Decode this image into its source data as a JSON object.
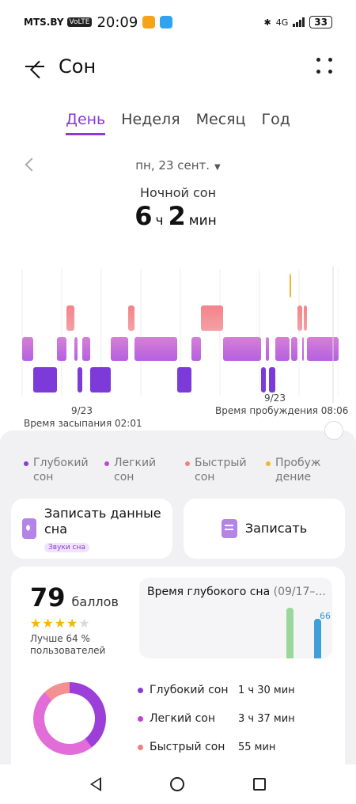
{
  "status": {
    "carrier": "MTS.BY",
    "volte": "VoLTE",
    "time": "20:09",
    "net": "4G",
    "battery": "33"
  },
  "header": {
    "title": "Сон"
  },
  "tabs": [
    {
      "label": "День",
      "active": true
    },
    {
      "label": "Неделя",
      "active": false
    },
    {
      "label": "Месяц",
      "active": false
    },
    {
      "label": "Год",
      "active": false
    }
  ],
  "date": {
    "label": "пн, 23 сент.",
    "caret": "▼"
  },
  "summary": {
    "label": "Ночной сон",
    "hours": "6",
    "hours_unit": "ч",
    "minutes": "2",
    "minutes_unit": "мин"
  },
  "chart_data": {
    "type": "hypnogram",
    "stages": [
      "Быстрый сон",
      "Легкий сон",
      "Глубокий сон"
    ],
    "colors": {
      "rem": "#f28a8a",
      "light": "#c46de0",
      "deep": "#7c3ad8",
      "awake": "#f2b72b"
    },
    "segments": [
      {
        "stage": "light",
        "start": 0,
        "end": 14
      },
      {
        "stage": "deep",
        "start": 14,
        "end": 44
      },
      {
        "stage": "light",
        "start": 44,
        "end": 56
      },
      {
        "stage": "rem",
        "start": 56,
        "end": 66
      },
      {
        "stage": "light",
        "start": 66,
        "end": 70
      },
      {
        "stage": "deep",
        "start": 70,
        "end": 76
      },
      {
        "stage": "light",
        "start": 76,
        "end": 86
      },
      {
        "stage": "deep",
        "start": 86,
        "end": 112
      },
      {
        "stage": "light",
        "start": 112,
        "end": 134
      },
      {
        "stage": "rem",
        "start": 134,
        "end": 142
      },
      {
        "stage": "light",
        "start": 142,
        "end": 196
      },
      {
        "stage": "deep",
        "start": 196,
        "end": 214
      },
      {
        "stage": "light",
        "start": 214,
        "end": 226
      },
      {
        "stage": "rem",
        "start": 226,
        "end": 254
      },
      {
        "stage": "light",
        "start": 254,
        "end": 302
      },
      {
        "stage": "deep",
        "start": 302,
        "end": 308
      },
      {
        "stage": "light",
        "start": 308,
        "end": 312
      },
      {
        "stage": "deep",
        "start": 312,
        "end": 320
      },
      {
        "stage": "light",
        "start": 320,
        "end": 338
      },
      {
        "stage": "awake",
        "start": 338,
        "end": 340
      },
      {
        "stage": "light",
        "start": 340,
        "end": 348
      },
      {
        "stage": "rem",
        "start": 348,
        "end": 354
      },
      {
        "stage": "light",
        "start": 354,
        "end": 356
      },
      {
        "stage": "rem",
        "start": 356,
        "end": 360
      },
      {
        "stage": "light",
        "start": 360,
        "end": 400
      }
    ],
    "start_date": "9/23",
    "start_label": "Время засыпания 02:01",
    "end_date": "9/23",
    "end_label": "Время пробуждения 08:06"
  },
  "legend": [
    {
      "label": "Глубокий сон",
      "color": "#8a3ad6"
    },
    {
      "label": "Легкий сон",
      "color": "#c046d0"
    },
    {
      "label": "Быстрый сон",
      "color": "#f08080"
    },
    {
      "label": "Пробуждение",
      "color": "#f2b72b"
    }
  ],
  "actions": {
    "record_data": "Записать данные сна",
    "sounds_badge": "Звуки сна",
    "record": "Записать"
  },
  "score": {
    "value": "79",
    "unit": "баллов",
    "stars": 4,
    "stars_total": 5,
    "better": "Лучше 64 % пользователей"
  },
  "deep_sleep_card": {
    "title": "Время глубокого сна",
    "range": "(09/17–...",
    "value": "66",
    "bars": [
      {
        "value": 66,
        "color": "#9bd69a"
      },
      {
        "value": 52,
        "color": "#3f9fd8"
      }
    ]
  },
  "breakdown": [
    {
      "label": "Глубокий сон",
      "value": "1 ч 30 мин",
      "color": "#8a3ad6"
    },
    {
      "label": "Легкий сон",
      "value": "3 ч 37 мин",
      "color": "#c046d0"
    },
    {
      "label": "Быстрый сон",
      "value": "55 мин",
      "color": "#f08080"
    }
  ]
}
